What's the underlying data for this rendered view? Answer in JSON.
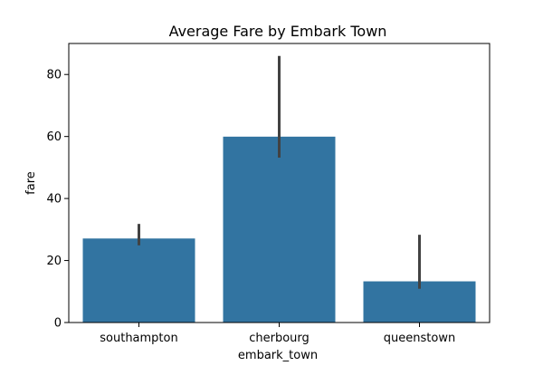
{
  "chart_data": {
    "type": "bar",
    "title": "Average Fare by Embark Town",
    "xlabel": "embark_town",
    "ylabel": "fare",
    "categories": [
      "southampton",
      "cherbourg",
      "queenstown"
    ],
    "values": [
      27.1,
      59.95,
      13.28
    ],
    "error_low": [
      24.9,
      53.2,
      10.9
    ],
    "error_high": [
      31.8,
      86.0,
      28.3
    ],
    "ylim": [
      0,
      90
    ],
    "yticks": [
      0,
      20,
      40,
      60,
      80
    ],
    "grid": false,
    "legend": "none",
    "colors": {
      "bar": "#3274a1",
      "error": "#424242",
      "axis": "#000000"
    }
  }
}
